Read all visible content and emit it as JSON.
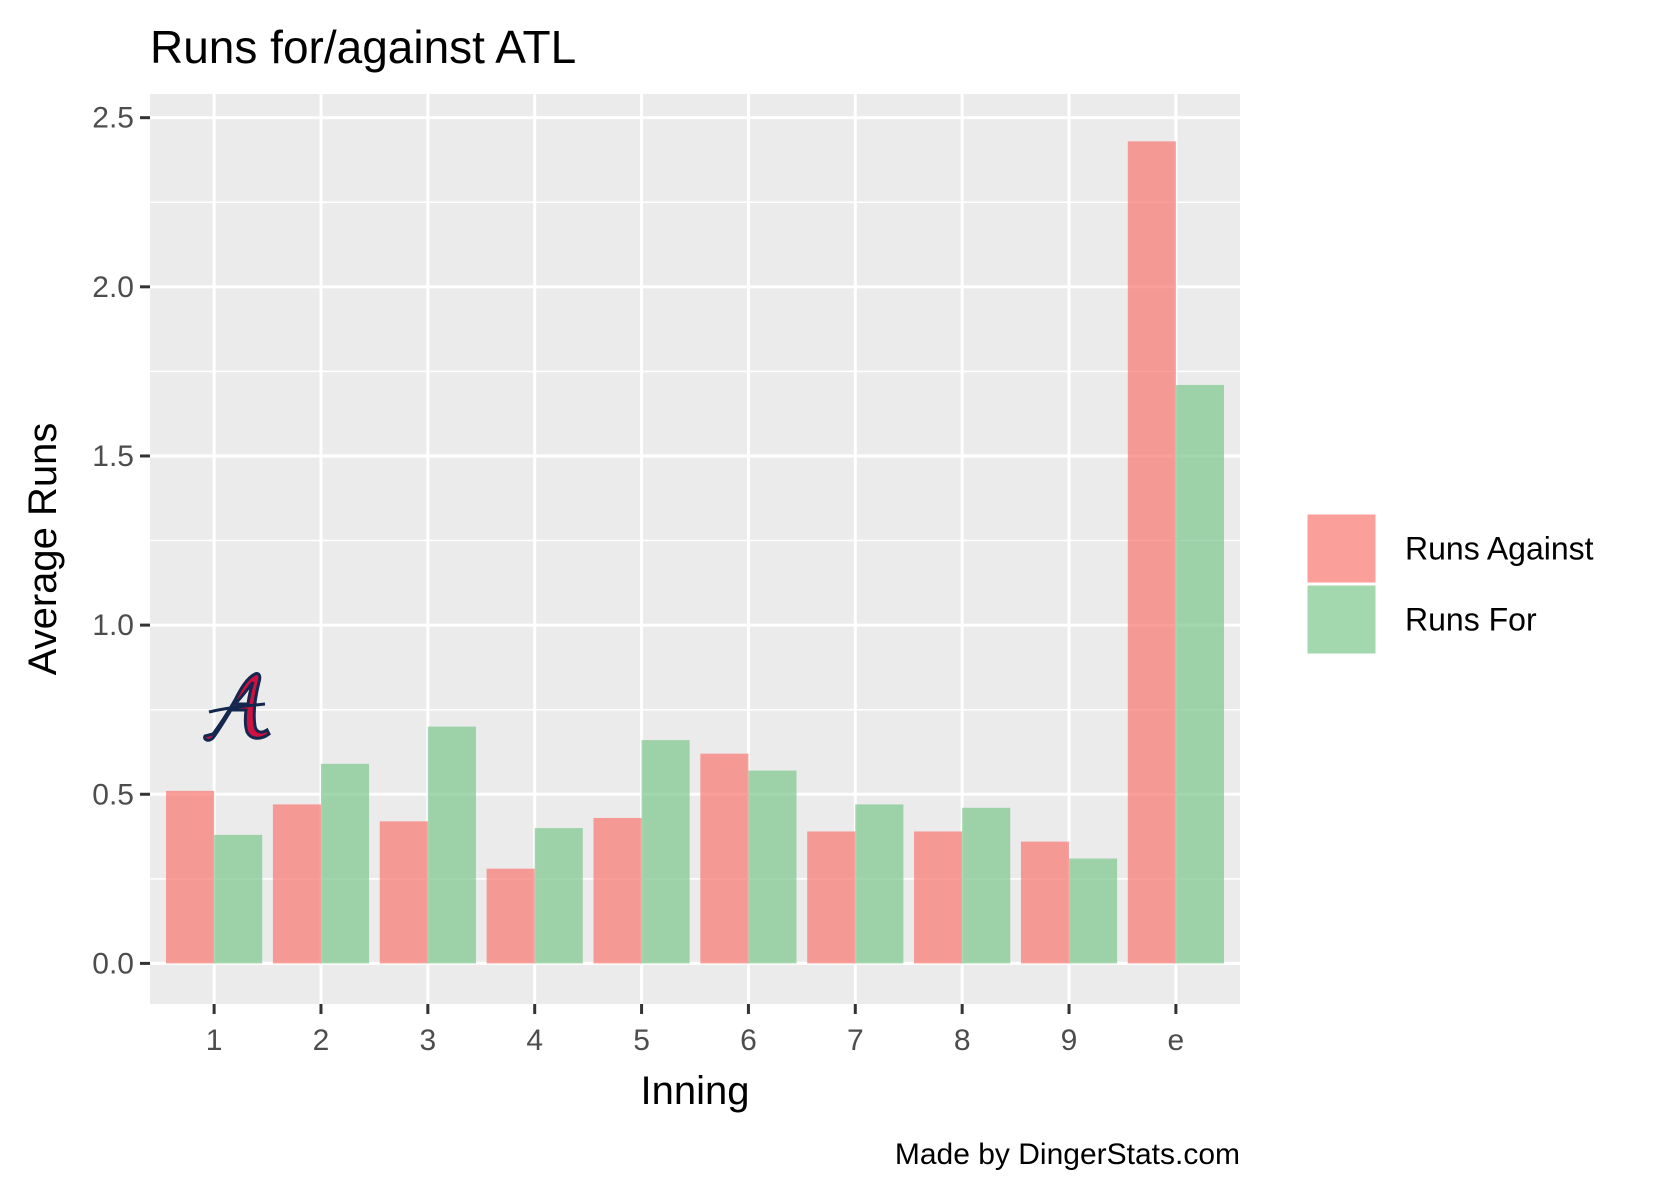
{
  "chart_data": {
    "type": "bar",
    "title": "Runs for/against ATL",
    "xlabel": "Inning",
    "ylabel": "Average Runs",
    "categories": [
      "1",
      "2",
      "3",
      "4",
      "5",
      "6",
      "7",
      "8",
      "9",
      "e"
    ],
    "series": [
      {
        "name": "Runs Against",
        "color": "#f8766d",
        "values": [
          0.51,
          0.47,
          0.42,
          0.28,
          0.43,
          0.62,
          0.39,
          0.39,
          0.36,
          2.43
        ]
      },
      {
        "name": "Runs For",
        "color": "#7cc68b",
        "values": [
          0.38,
          0.59,
          0.7,
          0.4,
          0.66,
          0.57,
          0.47,
          0.46,
          0.31,
          1.71
        ]
      }
    ],
    "ylim": [
      -0.12,
      2.57
    ],
    "yticks": [
      "0.0",
      "0.5",
      "1.0",
      "1.5",
      "2.0",
      "2.5"
    ],
    "ytick_values": [
      0,
      0.5,
      1.0,
      1.5,
      2.0,
      2.5
    ],
    "grid": true,
    "legend_position": "right",
    "panel_color": "#ebebeb",
    "caption": "Made by DingerStats.com",
    "logo": "atlanta-braves-a-logo"
  }
}
